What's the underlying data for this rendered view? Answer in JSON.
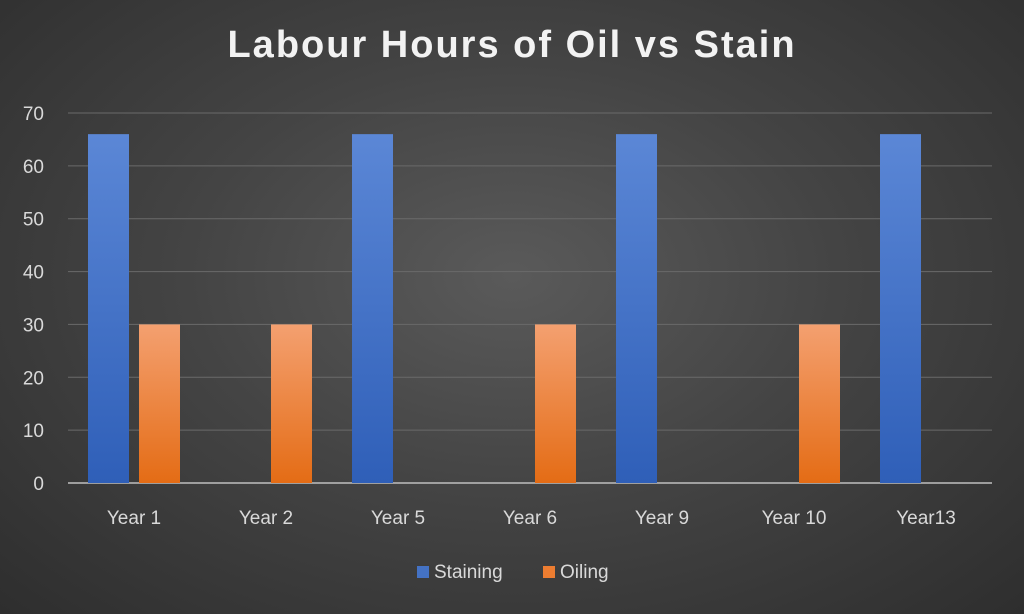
{
  "chart_data": {
    "type": "bar",
    "title": "Labour Hours of Oil vs Stain",
    "xlabel": "",
    "ylabel": "",
    "categories": [
      "Year 1",
      "Year 2",
      "Year 5",
      "Year 6",
      "Year 9",
      "Year 10",
      "Year13"
    ],
    "series": [
      {
        "name": "Staining",
        "color": "#4472c4",
        "values": [
          66,
          0,
          66,
          0,
          66,
          0,
          66
        ]
      },
      {
        "name": "Oiling",
        "color": "#ed7d31",
        "values": [
          30,
          30,
          0,
          30,
          0,
          30,
          0
        ]
      }
    ],
    "ylim": [
      0,
      70
    ],
    "yticks": [
      0,
      10,
      20,
      30,
      40,
      50,
      60,
      70
    ],
    "grid": true,
    "legend": "bottom"
  }
}
